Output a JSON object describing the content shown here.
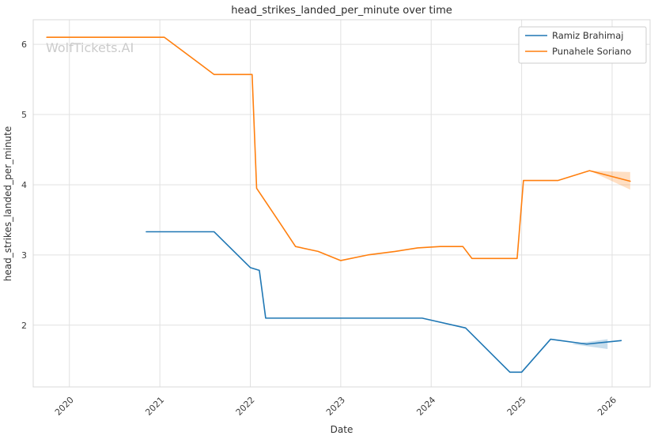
{
  "figure": {
    "watermark": "WolfTickets.AI"
  },
  "chart_data": {
    "type": "line",
    "title": "head_strikes_landed_per_minute over time",
    "xlabel": "Date",
    "ylabel": "head_strikes_landed_per_minute",
    "xlim": [
      2019.6,
      2026.42
    ],
    "ylim": [
      1.12,
      6.35
    ],
    "xticks": [
      2020,
      2021,
      2022,
      2023,
      2024,
      2025,
      2026
    ],
    "yticks": [
      2,
      3,
      4,
      5,
      6
    ],
    "xtick_rotation": 45,
    "grid": true,
    "legend_position": "top-right",
    "series": [
      {
        "name": "Ramiz Brahimaj",
        "color": "#1f77b4",
        "x": [
          2020.85,
          2021.6,
          2022.0,
          2022.1,
          2022.17,
          2023.0,
          2023.9,
          2024.38,
          2024.87,
          2025.0,
          2025.32,
          2025.72,
          2026.1
        ],
        "y": [
          3.33,
          3.33,
          2.82,
          2.78,
          2.1,
          2.1,
          2.1,
          1.96,
          1.33,
          1.33,
          1.8,
          1.73,
          1.78
        ]
      },
      {
        "name": "Punahele Soriano",
        "color": "#ff7f0e",
        "x": [
          2019.75,
          2021.05,
          2021.6,
          2022.02,
          2022.07,
          2022.33,
          2022.5,
          2022.75,
          2023.0,
          2023.3,
          2023.6,
          2023.85,
          2024.1,
          2024.35,
          2024.45,
          2024.95,
          2025.02,
          2025.4,
          2025.75,
          2026.2
        ],
        "y": [
          6.1,
          6.1,
          5.57,
          5.57,
          3.95,
          3.45,
          3.12,
          3.05,
          2.92,
          3.0,
          3.05,
          3.1,
          3.12,
          3.12,
          2.95,
          2.95,
          4.06,
          4.06,
          4.2,
          4.05
        ]
      }
    ],
    "bands": [
      {
        "series": "Ramiz Brahimaj",
        "color": "#1f77b4",
        "x": [
          2025.55,
          2025.95
        ],
        "upper": [
          1.73,
          1.8
        ],
        "lower": [
          1.73,
          1.66
        ]
      },
      {
        "series": "Punahele Soriano",
        "color": "#ff7f0e",
        "x": [
          2025.75,
          2026.2
        ],
        "upper": [
          4.2,
          4.18
        ],
        "lower": [
          4.2,
          3.93
        ]
      }
    ]
  }
}
